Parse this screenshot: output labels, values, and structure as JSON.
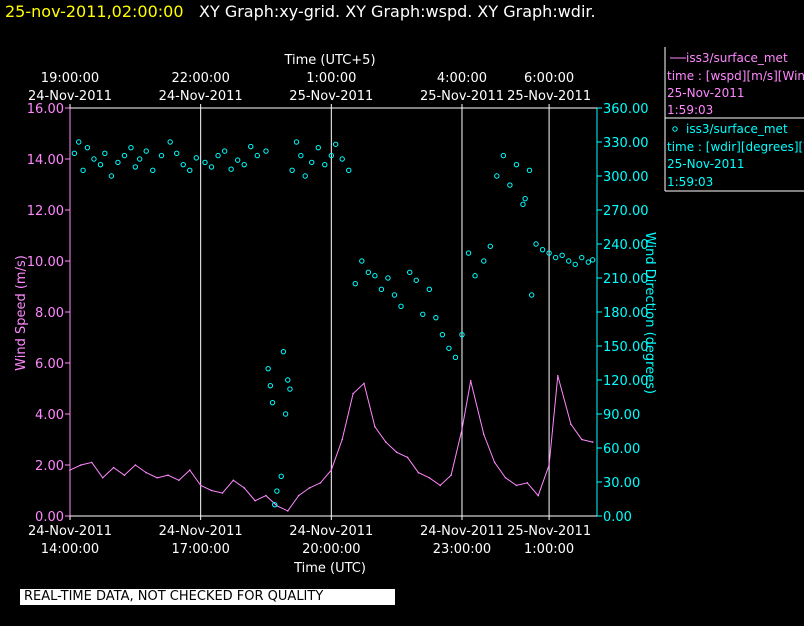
{
  "header": {
    "datetime": "25-nov-2011,02:00:00",
    "titles": "XY Graph:xy-grid.  XY Graph:wspd.  XY Graph:wdir."
  },
  "legend": {
    "wspd": {
      "series": "iss3/surface_met",
      "time": "time : [wspd][m/s][Wind",
      "date": "25-Nov-2011",
      "clock": "1:59:03"
    },
    "wdir": {
      "series": "iss3/surface_met",
      "time": "time : [wdir][degrees][W",
      "date": "25-Nov-2011",
      "clock": "1:59:03"
    }
  },
  "disclaimer": "REAL-TIME DATA, NOT CHECKED FOR QUALITY",
  "colors": {
    "background": "#000000",
    "header_date": "#ffff00",
    "speed": "#ff88ff",
    "direction": "#00ffff",
    "grid": "#ffffff",
    "text": "#ffffff"
  },
  "chart_data": {
    "type": "line",
    "x_label_bottom": "Time (UTC)",
    "x_label_top": "Time (UTC+5)",
    "x_range_hours_since_14utc": [
      0,
      12.1
    ],
    "y_left": {
      "label": "Wind Speed (m/s)",
      "range": [
        0,
        16
      ],
      "ticks": [
        "0.00",
        "2.00",
        "4.00",
        "6.00",
        "8.00",
        "10.00",
        "12.00",
        "14.00",
        "16.00"
      ]
    },
    "y_right": {
      "label": "Wind Direction (degrees)",
      "range": [
        0,
        360
      ],
      "ticks": [
        "0.00",
        "30.00",
        "60.00",
        "90.00",
        "120.00",
        "150.00",
        "180.00",
        "210.00",
        "240.00",
        "270.00",
        "300.00",
        "330.00",
        "360.00"
      ]
    },
    "bottom_ticks": [
      {
        "hour": 0,
        "date": "24-Nov-2011",
        "time": "14:00:00"
      },
      {
        "hour": 3,
        "date": "24-Nov-2011",
        "time": "17:00:00"
      },
      {
        "hour": 6,
        "date": "24-Nov-2011",
        "time": "20:00:00"
      },
      {
        "hour": 9,
        "date": "24-Nov-2011",
        "time": "23:00:00"
      },
      {
        "hour": 11,
        "date": "25-Nov-2011",
        "time": "1:00:00"
      }
    ],
    "top_ticks": [
      {
        "hour": 0,
        "time": "19:00:00",
        "date": "24-Nov-2011"
      },
      {
        "hour": 3,
        "time": "22:00:00",
        "date": "24-Nov-2011"
      },
      {
        "hour": 6,
        "time": "1:00:00",
        "date": "25-Nov-2011"
      },
      {
        "hour": 9,
        "time": "4:00:00",
        "date": "25-Nov-2011"
      },
      {
        "hour": 11,
        "time": "6:00:00",
        "date": "25-Nov-2011"
      }
    ],
    "vertical_grid_hours": [
      3,
      6,
      9,
      11
    ],
    "series": [
      {
        "name": "wspd",
        "axis": "left",
        "style": "line",
        "x": [
          0,
          0.25,
          0.5,
          0.75,
          1,
          1.25,
          1.5,
          1.75,
          2,
          2.25,
          2.5,
          2.75,
          3,
          3.25,
          3.5,
          3.75,
          4,
          4.25,
          4.5,
          4.75,
          5,
          5.25,
          5.5,
          5.75,
          6,
          6.25,
          6.5,
          6.75,
          7,
          7.25,
          7.5,
          7.75,
          8,
          8.25,
          8.5,
          8.75,
          9,
          9.2,
          9.5,
          9.75,
          10,
          10.25,
          10.5,
          10.75,
          11,
          11.2,
          11.5,
          11.75,
          12
        ],
        "values": [
          1.8,
          2.0,
          2.1,
          1.5,
          1.9,
          1.6,
          2.0,
          1.7,
          1.5,
          1.6,
          1.4,
          1.8,
          1.2,
          1.0,
          0.9,
          1.4,
          1.1,
          0.6,
          0.8,
          0.4,
          0.2,
          0.8,
          1.1,
          1.3,
          1.8,
          3.0,
          4.8,
          5.2,
          3.5,
          2.9,
          2.5,
          2.3,
          1.7,
          1.5,
          1.2,
          1.6,
          3.4,
          5.3,
          3.2,
          2.1,
          1.5,
          1.2,
          1.3,
          0.8,
          2.0,
          5.5,
          3.6,
          3.0,
          2.9
        ]
      },
      {
        "name": "wdir",
        "axis": "right",
        "style": "scatter",
        "x": [
          0.1,
          0.2,
          0.3,
          0.4,
          0.55,
          0.7,
          0.8,
          0.95,
          1.1,
          1.25,
          1.4,
          1.5,
          1.6,
          1.75,
          1.9,
          2.1,
          2.3,
          2.45,
          2.6,
          2.75,
          2.9,
          3.1,
          3.25,
          3.4,
          3.55,
          3.7,
          3.85,
          4.0,
          4.15,
          4.3,
          4.5,
          5.1,
          5.2,
          5.3,
          5.4,
          5.55,
          5.7,
          5.85,
          6.0,
          6.1,
          6.25,
          6.4,
          6.55,
          6.7,
          6.85,
          7.0,
          7.15,
          7.3,
          7.45,
          7.6,
          7.8,
          7.95,
          8.1,
          8.25,
          8.4,
          8.55,
          8.7,
          8.85,
          9.0,
          9.15,
          9.3,
          9.5,
          9.65,
          9.8,
          9.95,
          10.1,
          10.25,
          10.4,
          10.55,
          10.7,
          10.85,
          11.0,
          11.15,
          11.3,
          11.45,
          11.6,
          11.75,
          11.9,
          12.0,
          4.7,
          4.75,
          4.85,
          4.95,
          5.0,
          4.9,
          5.05,
          4.6,
          4.65,
          4.55,
          10.45,
          10.6
        ],
        "values": [
          320,
          330,
          305,
          325,
          315,
          310,
          320,
          300,
          312,
          318,
          325,
          308,
          315,
          322,
          305,
          318,
          330,
          320,
          310,
          305,
          316,
          312,
          308,
          318,
          322,
          306,
          314,
          310,
          326,
          318,
          322,
          305,
          330,
          318,
          300,
          312,
          325,
          310,
          318,
          328,
          315,
          305,
          205,
          225,
          215,
          212,
          200,
          210,
          195,
          185,
          215,
          208,
          178,
          200,
          175,
          160,
          148,
          140,
          160,
          232,
          212,
          225,
          238,
          300,
          318,
          292,
          310,
          275,
          305,
          240,
          235,
          232,
          228,
          230,
          225,
          222,
          228,
          224,
          226,
          10,
          22,
          35,
          90,
          120,
          145,
          112,
          115,
          100,
          130,
          280,
          195
        ]
      }
    ]
  }
}
